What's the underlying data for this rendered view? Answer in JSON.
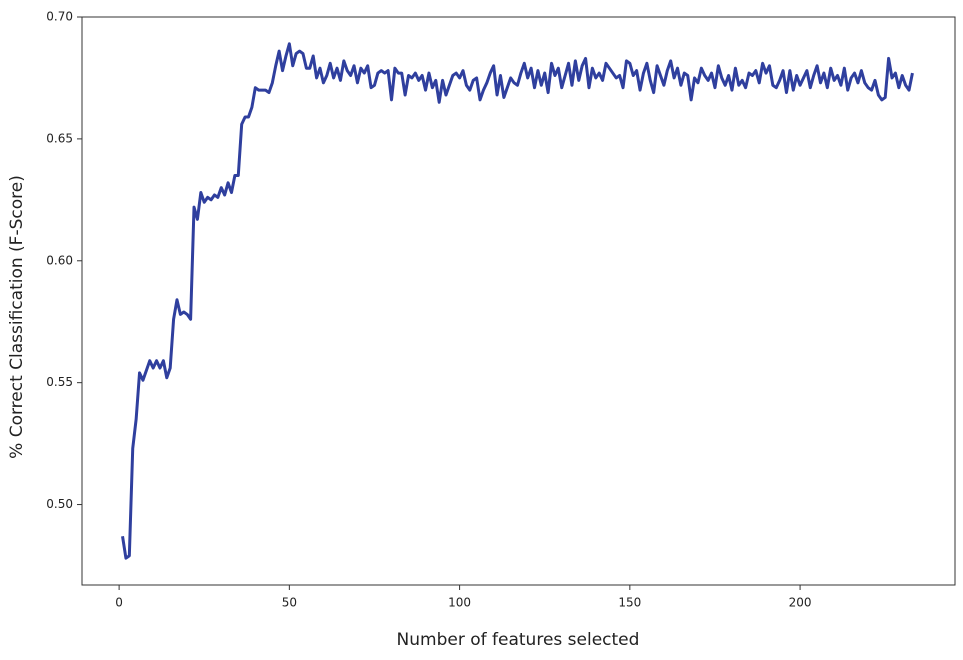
{
  "chart_data": {
    "type": "line",
    "xlabel": "Number of features selected",
    "ylabel": "% Correct Classification (F-Score)",
    "x": [
      1,
      2,
      3,
      4,
      5,
      6,
      7,
      8,
      9,
      10,
      11,
      12,
      13,
      14,
      15,
      16,
      17,
      18,
      19,
      20,
      21,
      22,
      23,
      24,
      25,
      26,
      27,
      28,
      29,
      30,
      31,
      32,
      33,
      34,
      35,
      36,
      37,
      38,
      39,
      40,
      41,
      42,
      43,
      44,
      45,
      46,
      47,
      48,
      49,
      50,
      51,
      52,
      53,
      54,
      55,
      56,
      57,
      58,
      59,
      60,
      61,
      62,
      63,
      64,
      65,
      66,
      67,
      68,
      69,
      70,
      71,
      72,
      73,
      74,
      75,
      76,
      77,
      78,
      79,
      80,
      81,
      82,
      83,
      84,
      85,
      86,
      87,
      88,
      89,
      90,
      91,
      92,
      93,
      94,
      95,
      96,
      97,
      98,
      99,
      100,
      101,
      102,
      103,
      104,
      105,
      106,
      107,
      108,
      109,
      110,
      111,
      112,
      113,
      114,
      115,
      116,
      117,
      118,
      119,
      120,
      121,
      122,
      123,
      124,
      125,
      126,
      127,
      128,
      129,
      130,
      131,
      132,
      133,
      134,
      135,
      136,
      137,
      138,
      139,
      140,
      141,
      142,
      143,
      144,
      145,
      146,
      147,
      148,
      149,
      150,
      151,
      152,
      153,
      154,
      155,
      156,
      157,
      158,
      159,
      160,
      161,
      162,
      163,
      164,
      165,
      166,
      167,
      168,
      169,
      170,
      171,
      172,
      173,
      174,
      175,
      176,
      177,
      178,
      179,
      180,
      181,
      182,
      183,
      184,
      185,
      186,
      187,
      188,
      189,
      190,
      191,
      192,
      193,
      194,
      195,
      196,
      197,
      198,
      199,
      200,
      201,
      202,
      203,
      204,
      205,
      206,
      207,
      208,
      209,
      210,
      211,
      212,
      213,
      214,
      215,
      216,
      217,
      218,
      219,
      220,
      221,
      222,
      223,
      224,
      225,
      226,
      227,
      228,
      229,
      230,
      231,
      232,
      233
    ],
    "series": [
      {
        "color": "#2f3f9e",
        "values": [
          0.487,
          0.478,
          0.479,
          0.523,
          0.535,
          0.554,
          0.551,
          0.555,
          0.559,
          0.556,
          0.559,
          0.556,
          0.559,
          0.552,
          0.556,
          0.576,
          0.584,
          0.578,
          0.579,
          0.578,
          0.576,
          0.622,
          0.617,
          0.628,
          0.624,
          0.626,
          0.625,
          0.627,
          0.626,
          0.63,
          0.627,
          0.632,
          0.628,
          0.635,
          0.635,
          0.656,
          0.659,
          0.659,
          0.663,
          0.671,
          0.67,
          0.67,
          0.67,
          0.669,
          0.673,
          0.68,
          0.686,
          0.678,
          0.684,
          0.689,
          0.68,
          0.685,
          0.686,
          0.685,
          0.679,
          0.679,
          0.684,
          0.675,
          0.679,
          0.673,
          0.676,
          0.681,
          0.675,
          0.679,
          0.674,
          0.682,
          0.678,
          0.676,
          0.68,
          0.673,
          0.679,
          0.677,
          0.68,
          0.671,
          0.672,
          0.677,
          0.678,
          0.677,
          0.678,
          0.666,
          0.679,
          0.677,
          0.677,
          0.668,
          0.676,
          0.675,
          0.677,
          0.674,
          0.676,
          0.67,
          0.677,
          0.671,
          0.674,
          0.665,
          0.674,
          0.668,
          0.672,
          0.676,
          0.677,
          0.675,
          0.678,
          0.672,
          0.67,
          0.674,
          0.675,
          0.666,
          0.67,
          0.673,
          0.677,
          0.68,
          0.668,
          0.676,
          0.667,
          0.671,
          0.675,
          0.673,
          0.672,
          0.677,
          0.681,
          0.675,
          0.679,
          0.671,
          0.678,
          0.672,
          0.677,
          0.669,
          0.681,
          0.676,
          0.679,
          0.671,
          0.676,
          0.681,
          0.672,
          0.682,
          0.674,
          0.68,
          0.683,
          0.671,
          0.679,
          0.675,
          0.677,
          0.674,
          0.681,
          0.679,
          0.677,
          0.675,
          0.676,
          0.671,
          0.682,
          0.681,
          0.676,
          0.678,
          0.67,
          0.677,
          0.681,
          0.674,
          0.669,
          0.68,
          0.676,
          0.672,
          0.678,
          0.682,
          0.675,
          0.679,
          0.672,
          0.677,
          0.676,
          0.666,
          0.675,
          0.673,
          0.679,
          0.676,
          0.674,
          0.677,
          0.671,
          0.68,
          0.675,
          0.672,
          0.676,
          0.67,
          0.679,
          0.672,
          0.674,
          0.671,
          0.677,
          0.676,
          0.678,
          0.673,
          0.681,
          0.677,
          0.68,
          0.672,
          0.671,
          0.674,
          0.678,
          0.669,
          0.678,
          0.67,
          0.676,
          0.672,
          0.675,
          0.678,
          0.671,
          0.676,
          0.68,
          0.673,
          0.677,
          0.671,
          0.679,
          0.674,
          0.676,
          0.672,
          0.679,
          0.67,
          0.675,
          0.677,
          0.673,
          0.678,
          0.673,
          0.671,
          0.67,
          0.674,
          0.668,
          0.666,
          0.667,
          0.683,
          0.675,
          0.677,
          0.671,
          0.676,
          0.672,
          0.67,
          0.677
        ]
      }
    ],
    "xlim": [
      -10.9,
      245.5
    ],
    "ylim": [
      0.467,
      0.7
    ],
    "xticks": [
      0,
      50,
      100,
      150,
      200
    ],
    "yticks": [
      {
        "value": 0.7,
        "label": "0.70"
      },
      0.65,
      {
        "value": 0.6,
        "label": "0.60"
      },
      0.55,
      {
        "value": 0.5,
        "label": "0.50"
      }
    ]
  }
}
